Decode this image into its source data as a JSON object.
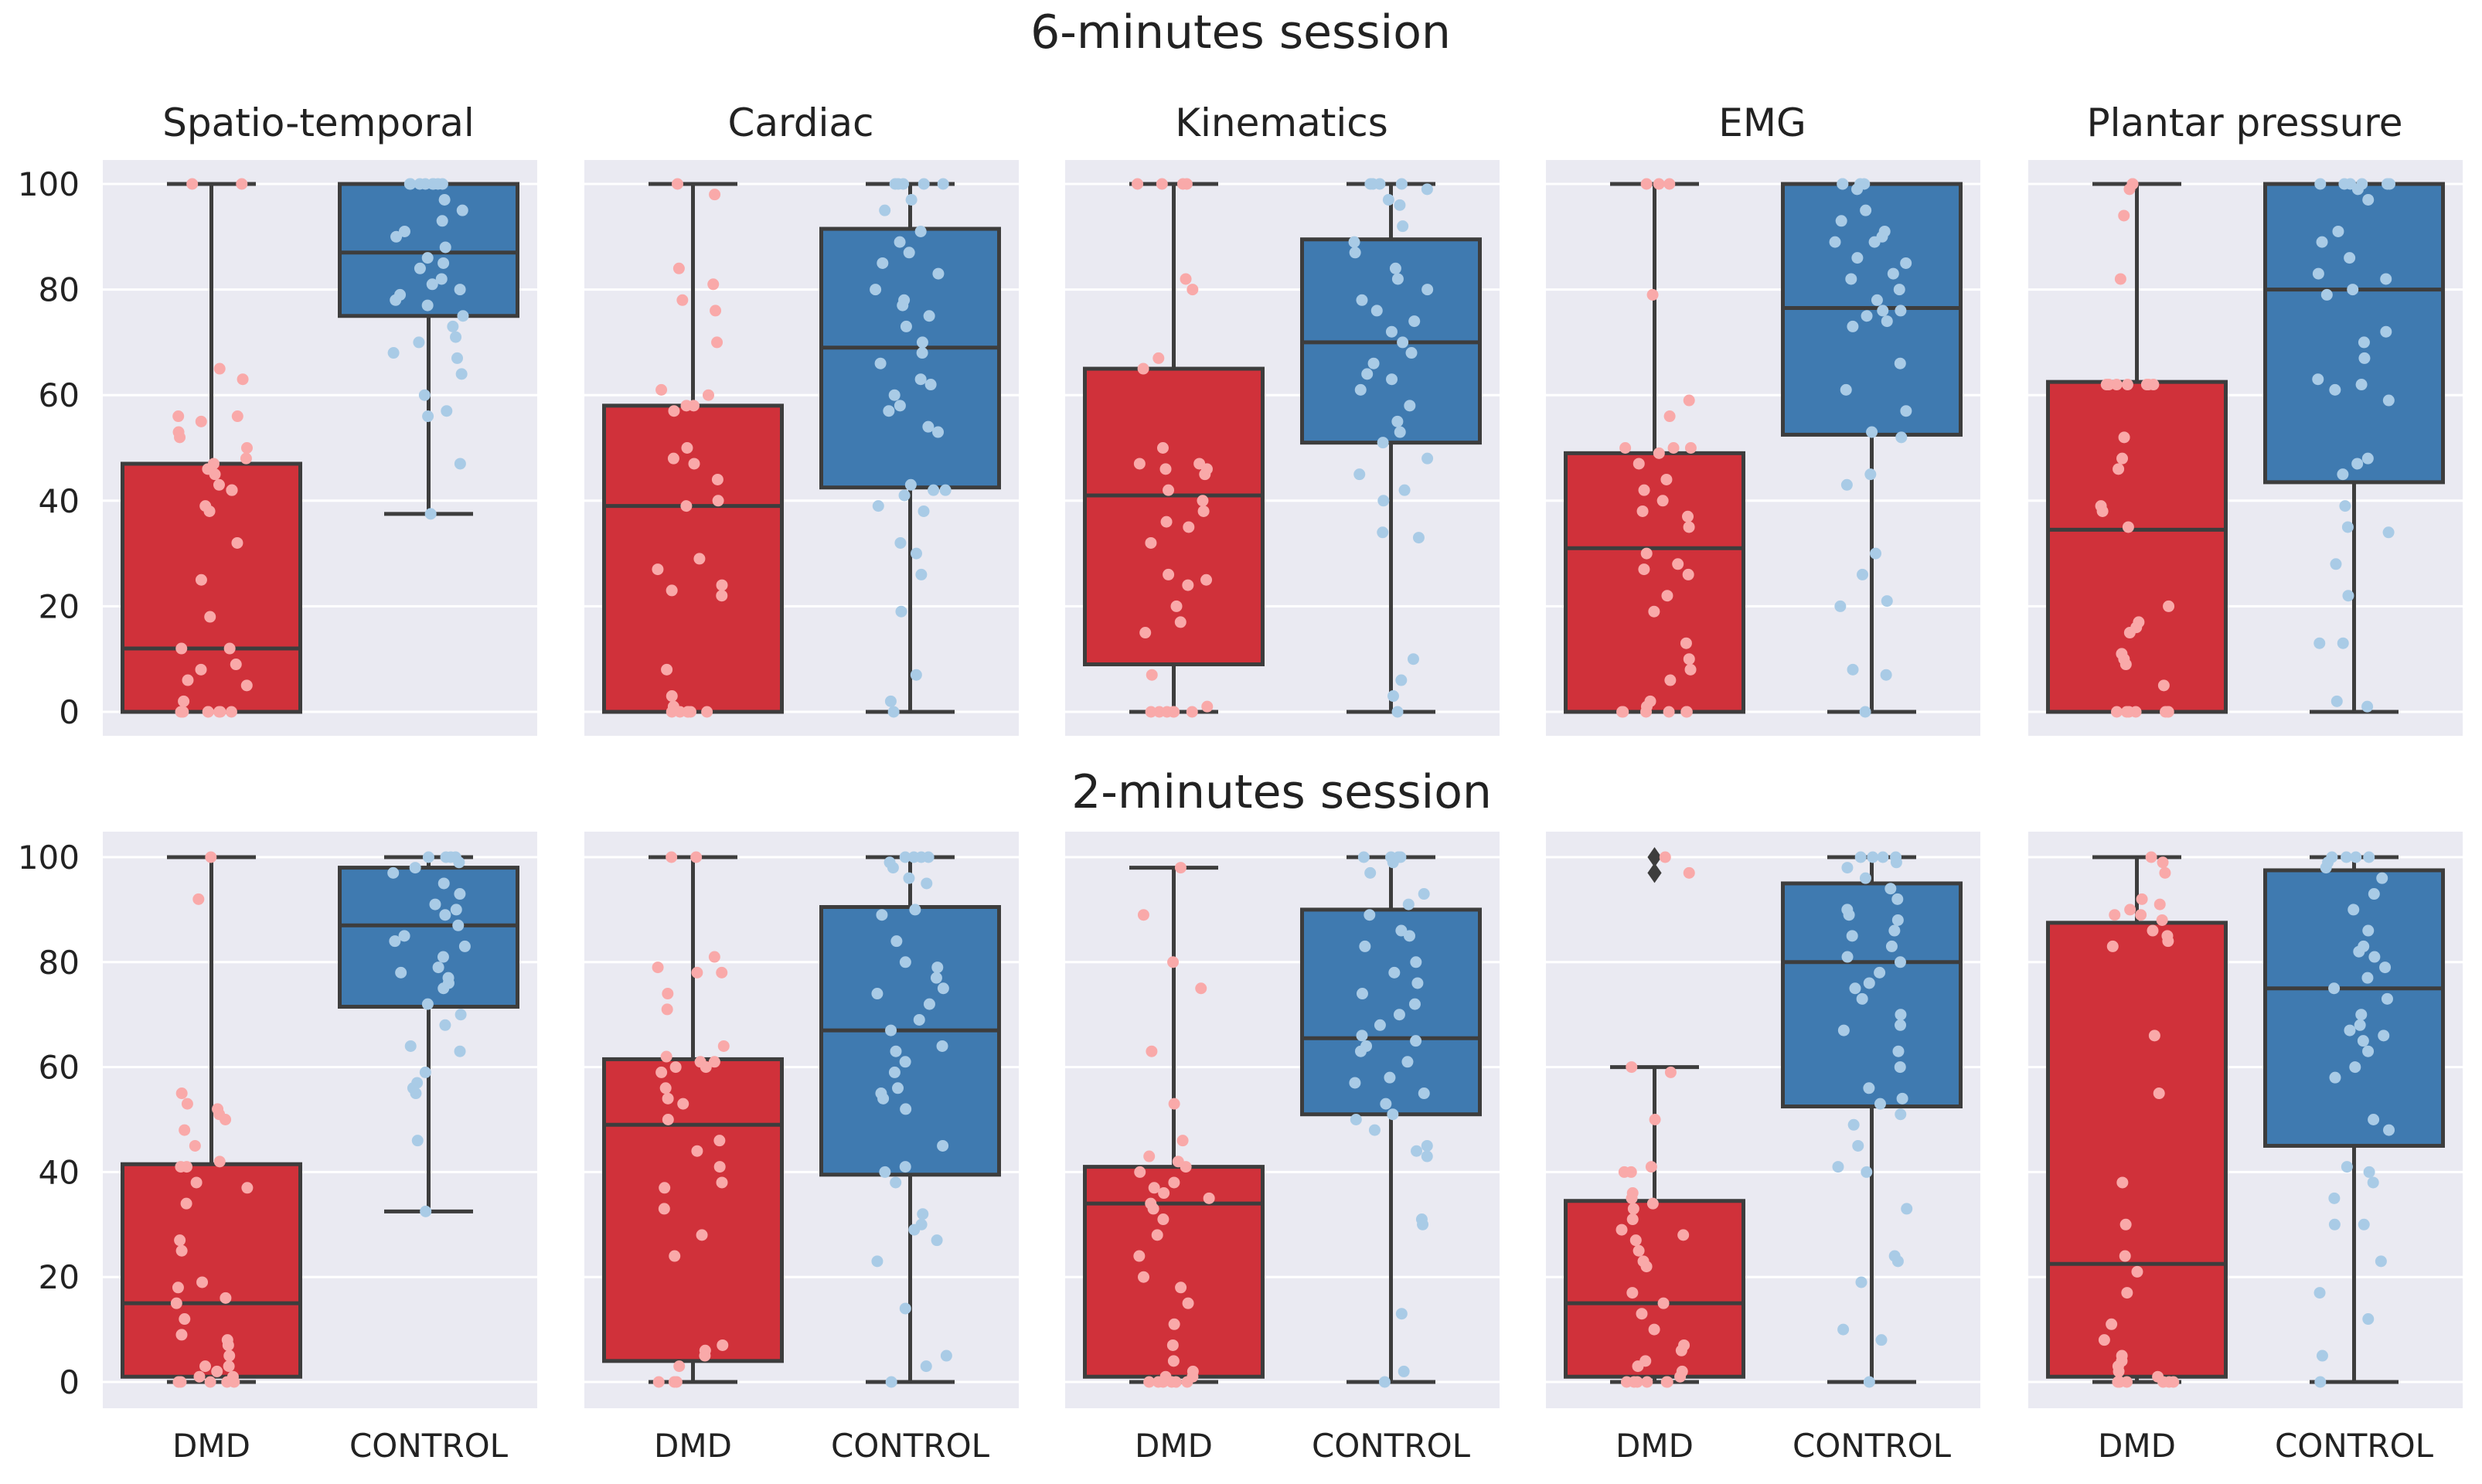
{
  "figure": {
    "row_titles": [
      "6-minutes session",
      "2-minutes session"
    ],
    "panel_titles": [
      "Spatio-temporal",
      "Cardiac",
      "Kinematics",
      "EMG",
      "Plantar pressure"
    ],
    "categories": [
      "DMD",
      "CONTROL"
    ],
    "yticks": [
      0,
      20,
      40,
      60,
      80,
      100
    ],
    "colors": {
      "background": "#eaeaf2",
      "grid": "#ffffff",
      "dmd_box": "#d0313a",
      "control_box": "#3f7ab0",
      "dmd_point": "#f9a9a9",
      "control_point": "#a9cbe6",
      "line": "#3d3d3d"
    }
  },
  "chart_data": [
    {
      "type": "box",
      "session": "6-minutes session",
      "title": "Spatio-temporal",
      "categories": [
        "DMD",
        "CONTROL"
      ],
      "ylim": [
        -4,
        104
      ],
      "series": [
        {
          "name": "DMD",
          "min": 0,
          "q1": 0,
          "median": 12,
          "q3": 47,
          "max": 100,
          "outliers": [],
          "points": [
            100,
            100,
            65,
            63,
            56,
            56,
            55,
            53,
            52,
            50,
            48,
            47,
            46,
            45,
            43,
            42,
            42,
            39,
            38,
            32,
            25,
            18,
            12,
            12,
            9,
            8,
            6,
            5,
            2,
            0,
            0,
            0,
            0,
            0,
            0,
            0,
            0
          ]
        },
        {
          "name": "CONTROL",
          "min": 37.5,
          "q1": 75,
          "median": 87,
          "q3": 100,
          "max": 100,
          "outliers": [],
          "points": [
            100,
            100,
            100,
            100,
            100,
            100,
            100,
            100,
            97,
            95,
            93,
            91,
            90,
            88,
            86,
            85,
            84,
            82,
            81,
            80,
            79,
            78,
            77,
            75,
            73,
            71,
            70,
            68,
            67,
            64,
            60,
            57,
            56,
            47,
            37.5
          ]
        }
      ]
    },
    {
      "type": "box",
      "session": "6-minutes session",
      "title": "Cardiac",
      "categories": [
        "DMD",
        "CONTROL"
      ],
      "ylim": [
        -4,
        104
      ],
      "series": [
        {
          "name": "DMD",
          "min": 0,
          "q1": 0,
          "median": 39,
          "q3": 58,
          "max": 100,
          "outliers": [],
          "points": [
            100,
            98,
            84,
            81,
            78,
            76,
            70,
            61,
            60,
            58,
            58,
            57,
            50,
            48,
            47,
            44,
            40,
            39,
            29,
            27,
            24,
            23,
            22,
            8,
            3,
            1,
            0,
            0,
            0,
            0,
            0,
            0
          ]
        },
        {
          "name": "CONTROL",
          "min": 0,
          "q1": 42.5,
          "median": 69,
          "q3": 91.5,
          "max": 100,
          "outliers": [],
          "points": [
            100,
            100,
            100,
            100,
            100,
            97,
            95,
            91,
            89,
            87,
            85,
            83,
            80,
            78,
            77,
            75,
            73,
            70,
            68,
            66,
            63,
            62,
            60,
            58,
            57,
            54,
            53,
            43,
            42,
            42,
            41,
            39,
            38,
            32,
            30,
            26,
            19,
            7,
            2,
            0
          ]
        }
      ]
    },
    {
      "type": "box",
      "session": "6-minutes session",
      "title": "Kinematics",
      "categories": [
        "DMD",
        "CONTROL"
      ],
      "ylim": [
        -4,
        104
      ],
      "series": [
        {
          "name": "DMD",
          "min": 0,
          "q1": 9,
          "median": 41,
          "q3": 65,
          "max": 100,
          "outliers": [],
          "points": [
            100,
            100,
            100,
            100,
            82,
            80,
            67,
            65,
            50,
            47,
            47,
            46,
            46,
            45,
            42,
            40,
            38,
            36,
            35,
            32,
            26,
            25,
            24,
            20,
            17,
            15,
            7,
            1,
            0,
            0,
            0,
            0,
            0,
            0
          ]
        },
        {
          "name": "CONTROL",
          "min": 0,
          "q1": 51,
          "median": 70,
          "q3": 89.5,
          "max": 100,
          "outliers": [],
          "points": [
            100,
            100,
            100,
            100,
            99,
            97,
            96,
            92,
            89,
            87,
            84,
            82,
            80,
            78,
            76,
            74,
            72,
            70,
            68,
            66,
            64,
            63,
            61,
            58,
            55,
            53,
            51,
            48,
            45,
            42,
            40,
            34,
            33,
            10,
            6,
            3,
            0
          ]
        }
      ]
    },
    {
      "type": "box",
      "session": "6-minutes session",
      "title": "EMG",
      "categories": [
        "DMD",
        "CONTROL"
      ],
      "ylim": [
        -4,
        104
      ],
      "series": [
        {
          "name": "DMD",
          "min": 0,
          "q1": 0,
          "median": 31,
          "q3": 49,
          "max": 100,
          "outliers": [],
          "points": [
            100,
            100,
            100,
            79,
            59,
            56,
            50,
            50,
            50,
            49,
            47,
            44,
            42,
            40,
            38,
            37,
            35,
            30,
            28,
            27,
            26,
            22,
            19,
            13,
            10,
            8,
            6,
            2,
            1,
            0,
            0,
            0,
            0,
            0,
            0
          ]
        },
        {
          "name": "CONTROL",
          "min": 0,
          "q1": 52.5,
          "median": 76.5,
          "q3": 100,
          "max": 100,
          "outliers": [],
          "points": [
            100,
            100,
            100,
            100,
            99,
            95,
            93,
            91,
            90,
            89,
            89,
            86,
            85,
            83,
            82,
            80,
            78,
            76,
            76,
            75,
            74,
            73,
            66,
            61,
            57,
            53,
            52,
            45,
            43,
            30,
            26,
            21,
            20,
            8,
            7,
            0
          ]
        }
      ]
    },
    {
      "type": "box",
      "session": "6-minutes session",
      "title": "Plantar pressure",
      "categories": [
        "DMD",
        "CONTROL"
      ],
      "ylim": [
        -4,
        104
      ],
      "series": [
        {
          "name": "DMD",
          "min": 0,
          "q1": 0,
          "median": 34.5,
          "q3": 62.5,
          "max": 100,
          "outliers": [],
          "points": [
            100,
            100,
            99,
            94,
            82,
            62,
            62,
            62,
            62,
            62,
            62,
            62,
            52,
            48,
            46,
            39,
            38,
            35,
            20,
            17,
            16,
            15,
            11,
            10,
            9,
            5,
            0,
            0,
            0,
            0,
            0,
            0,
            0
          ]
        },
        {
          "name": "CONTROL",
          "min": 0,
          "q1": 43.5,
          "median": 80,
          "q3": 100,
          "max": 100,
          "outliers": [],
          "points": [
            100,
            100,
            100,
            100,
            100,
            100,
            99,
            97,
            91,
            89,
            86,
            83,
            82,
            80,
            79,
            72,
            70,
            67,
            63,
            62,
            61,
            59,
            48,
            47,
            45,
            39,
            35,
            34,
            28,
            22,
            13,
            13,
            2,
            1
          ]
        }
      ]
    },
    {
      "type": "box",
      "session": "2-minutes session",
      "title": "Spatio-temporal",
      "categories": [
        "DMD",
        "CONTROL"
      ],
      "ylim": [
        -4,
        104
      ],
      "series": [
        {
          "name": "DMD",
          "min": 0,
          "q1": 1,
          "median": 15,
          "q3": 41.5,
          "max": 100,
          "outliers": [],
          "points": [
            100,
            92,
            55,
            53,
            52,
            51,
            50,
            48,
            45,
            42,
            41,
            41,
            38,
            37,
            34,
            27,
            25,
            19,
            18,
            16,
            15,
            12,
            9,
            8,
            7,
            5,
            3,
            3,
            2,
            1,
            1,
            0,
            0,
            0,
            0,
            0
          ]
        },
        {
          "name": "CONTROL",
          "min": 32.5,
          "q1": 71.5,
          "median": 87,
          "q3": 98,
          "max": 100,
          "outliers": [],
          "points": [
            100,
            100,
            100,
            100,
            99,
            98,
            97,
            95,
            93,
            91,
            90,
            89,
            87,
            85,
            84,
            83,
            81,
            79,
            78,
            77,
            76,
            75,
            72,
            70,
            68,
            64,
            63,
            59,
            57,
            56,
            55,
            46,
            32.5
          ]
        }
      ]
    },
    {
      "type": "box",
      "session": "2-minutes session",
      "title": "Cardiac",
      "categories": [
        "DMD",
        "CONTROL"
      ],
      "ylim": [
        -4,
        104
      ],
      "series": [
        {
          "name": "DMD",
          "min": 0,
          "q1": 4,
          "median": 49,
          "q3": 61.5,
          "max": 100,
          "outliers": [],
          "points": [
            100,
            100,
            81,
            79,
            78,
            78,
            74,
            71,
            64,
            62,
            61,
            61,
            60,
            60,
            59,
            56,
            54,
            53,
            50,
            46,
            44,
            41,
            38,
            37,
            33,
            28,
            24,
            7,
            6,
            5,
            3,
            0,
            0,
            0
          ]
        },
        {
          "name": "CONTROL",
          "min": 0,
          "q1": 39.5,
          "median": 67,
          "q3": 90.5,
          "max": 100,
          "outliers": [],
          "points": [
            100,
            100,
            100,
            100,
            99,
            98,
            96,
            95,
            90,
            89,
            84,
            80,
            79,
            77,
            75,
            74,
            72,
            69,
            67,
            64,
            63,
            61,
            59,
            56,
            55,
            54,
            52,
            45,
            41,
            40,
            38,
            32,
            30,
            29,
            27,
            23,
            14,
            5,
            3,
            0
          ]
        }
      ]
    },
    {
      "type": "box",
      "session": "2-minutes session",
      "title": "Kinematics",
      "categories": [
        "DMD",
        "CONTROL"
      ],
      "ylim": [
        -4,
        104
      ],
      "series": [
        {
          "name": "DMD",
          "min": 0,
          "q1": 1,
          "median": 34,
          "q3": 41,
          "max": 98,
          "outliers": [],
          "points": [
            98,
            89,
            80,
            75,
            63,
            53,
            46,
            43,
            42,
            41,
            40,
            38,
            37,
            36,
            35,
            34,
            33,
            31,
            28,
            24,
            20,
            18,
            15,
            11,
            7,
            4,
            2,
            1,
            1,
            0,
            0,
            0,
            0,
            0,
            0
          ]
        },
        {
          "name": "CONTROL",
          "min": 0,
          "q1": 51,
          "median": 65.5,
          "q3": 90,
          "max": 100,
          "outliers": [],
          "points": [
            100,
            100,
            100,
            100,
            99,
            97,
            93,
            91,
            89,
            86,
            85,
            83,
            80,
            78,
            76,
            74,
            72,
            70,
            68,
            66,
            65,
            64,
            63,
            61,
            58,
            57,
            55,
            53,
            51,
            50,
            48,
            45,
            44,
            43,
            31,
            30,
            13,
            2,
            0
          ]
        }
      ]
    },
    {
      "type": "box",
      "session": "2-minutes session",
      "title": "EMG",
      "categories": [
        "DMD",
        "CONTROL"
      ],
      "ylim": [
        -4,
        104
      ],
      "series": [
        {
          "name": "DMD",
          "min": 0,
          "q1": 1,
          "median": 15,
          "q3": 34.5,
          "max": 60,
          "outliers": [
            100,
            97
          ],
          "points": [
            100,
            97,
            60,
            59,
            50,
            41,
            40,
            40,
            36,
            35,
            34,
            33,
            31,
            29,
            28,
            27,
            25,
            23,
            22,
            17,
            15,
            13,
            10,
            7,
            6,
            4,
            3,
            2,
            1,
            0,
            0,
            0,
            0,
            0,
            0
          ]
        },
        {
          "name": "CONTROL",
          "min": 0,
          "q1": 52.5,
          "median": 80,
          "q3": 95,
          "max": 100,
          "outliers": [],
          "points": [
            100,
            100,
            100,
            100,
            99,
            98,
            96,
            94,
            92,
            90,
            89,
            88,
            86,
            85,
            83,
            81,
            80,
            78,
            76,
            75,
            73,
            70,
            68,
            67,
            63,
            60,
            56,
            54,
            53,
            51,
            49,
            45,
            41,
            40,
            33,
            24,
            23,
            19,
            10,
            8,
            0
          ]
        }
      ]
    },
    {
      "type": "box",
      "session": "2-minutes session",
      "title": "Plantar pressure",
      "categories": [
        "DMD",
        "CONTROL"
      ],
      "ylim": [
        -4,
        104
      ],
      "series": [
        {
          "name": "DMD",
          "min": 0,
          "q1": 1,
          "median": 22.5,
          "q3": 87.5,
          "max": 100,
          "outliers": [],
          "points": [
            100,
            99,
            97,
            92,
            91,
            90,
            89,
            89,
            88,
            86,
            85,
            84,
            83,
            66,
            55,
            38,
            30,
            24,
            21,
            17,
            11,
            8,
            5,
            4,
            3,
            2,
            1,
            0,
            0,
            0,
            0,
            0,
            0
          ]
        },
        {
          "name": "CONTROL",
          "min": 0,
          "q1": 45,
          "median": 75,
          "q3": 97.5,
          "max": 100,
          "outliers": [],
          "points": [
            100,
            100,
            100,
            100,
            99,
            98,
            96,
            93,
            90,
            86,
            83,
            82,
            81,
            79,
            77,
            75,
            73,
            70,
            68,
            67,
            66,
            65,
            63,
            60,
            58,
            50,
            48,
            41,
            40,
            38,
            35,
            30,
            30,
            23,
            17,
            12,
            5,
            0
          ]
        }
      ]
    }
  ]
}
